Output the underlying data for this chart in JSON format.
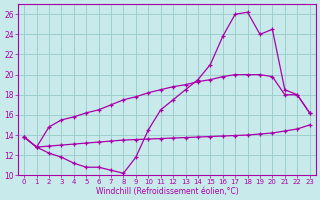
{
  "bg_color": "#c8eaea",
  "grid_color": "#9ecece",
  "line_color": "#aa00aa",
  "xlabel": "Windchill (Refroidissement éolien,°C)",
  "xlim": [
    -0.5,
    23.5
  ],
  "ylim": [
    10,
    27
  ],
  "yticks": [
    10,
    12,
    14,
    16,
    18,
    20,
    22,
    24,
    26
  ],
  "xticks": [
    0,
    1,
    2,
    3,
    4,
    5,
    6,
    7,
    8,
    9,
    10,
    11,
    12,
    13,
    14,
    15,
    16,
    17,
    18,
    19,
    20,
    21,
    22,
    23
  ],
  "curve1_x": [
    0,
    1,
    2,
    3,
    4,
    5,
    6,
    7,
    8,
    9,
    10,
    11,
    12,
    13,
    14,
    15,
    16,
    17,
    18,
    19,
    20,
    21,
    22,
    23
  ],
  "curve1_y": [
    13.8,
    12.8,
    12.2,
    11.8,
    11.2,
    10.8,
    10.8,
    10.5,
    10.2,
    11.8,
    14.5,
    16.5,
    17.5,
    18.5,
    19.5,
    21.0,
    23.8,
    26.0,
    26.2,
    24.0,
    24.5,
    18.5,
    18.0,
    16.2
  ],
  "curve2_x": [
    0,
    1,
    2,
    3,
    4,
    5,
    6,
    7,
    8,
    9,
    10,
    11,
    12,
    13,
    14,
    15,
    16,
    17,
    18,
    19,
    20,
    21,
    22,
    23
  ],
  "curve2_y": [
    13.8,
    12.8,
    14.8,
    15.5,
    15.8,
    16.2,
    16.5,
    17.0,
    17.5,
    17.8,
    18.2,
    18.5,
    18.8,
    19.0,
    19.3,
    19.5,
    19.8,
    20.0,
    20.0,
    20.0,
    19.8,
    18.0,
    18.0,
    16.2
  ],
  "curve3_x": [
    0,
    1,
    2,
    3,
    4,
    5,
    6,
    7,
    8,
    9,
    10,
    11,
    12,
    13,
    14,
    15,
    16,
    17,
    18,
    19,
    20,
    21,
    22,
    23
  ],
  "curve3_y": [
    13.8,
    12.8,
    12.9,
    13.0,
    13.1,
    13.2,
    13.3,
    13.4,
    13.5,
    13.55,
    13.6,
    13.65,
    13.7,
    13.75,
    13.8,
    13.85,
    13.9,
    13.95,
    14.0,
    14.1,
    14.2,
    14.4,
    14.6,
    15.0
  ]
}
